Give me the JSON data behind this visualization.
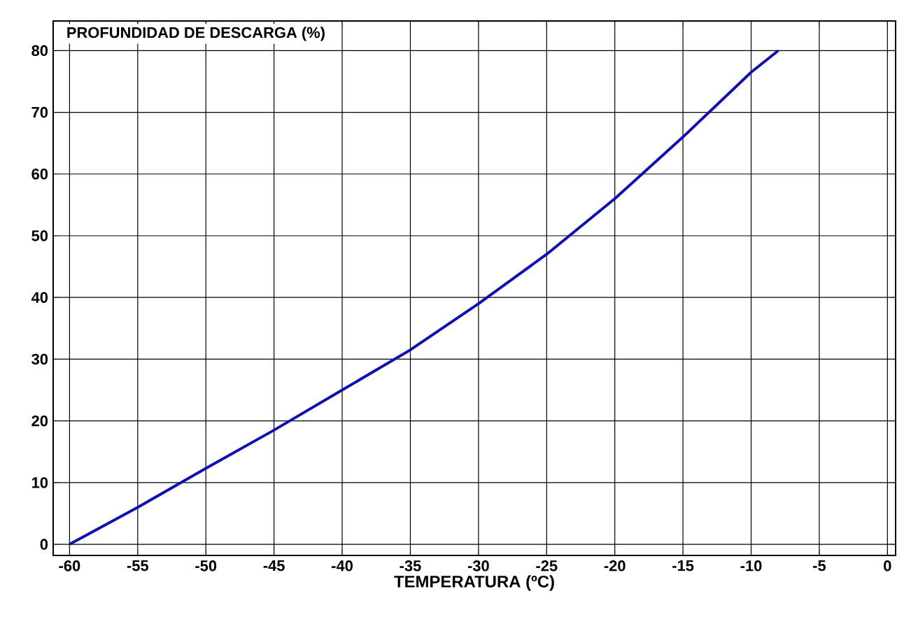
{
  "chart_data": {
    "type": "line",
    "xlabel": "TEMPERATURA (ºC)",
    "ylabel": "PROFUNDIDAD DE DESCARGA (%)",
    "x": [
      -60,
      -55,
      -50,
      -45,
      -40,
      -35,
      -30,
      -25,
      -20,
      -15,
      -10,
      -8
    ],
    "series": [
      {
        "color": "#1010b0",
        "values": [
          0,
          6,
          12.3,
          18.5,
          25,
          31.5,
          39,
          47,
          56,
          66,
          76.5,
          80
        ]
      }
    ],
    "xlim": [
      -61.2,
      0.6
    ],
    "ylim": [
      -1.8,
      84.8
    ],
    "xticks": [
      -60,
      -55,
      -50,
      -45,
      -40,
      -35,
      -30,
      -25,
      -20,
      -15,
      -10,
      -5,
      0
    ],
    "yticks": [
      0,
      10,
      20,
      30,
      40,
      50,
      60,
      70,
      80
    ],
    "grid": true,
    "marker": "none",
    "line_style": "solid"
  }
}
